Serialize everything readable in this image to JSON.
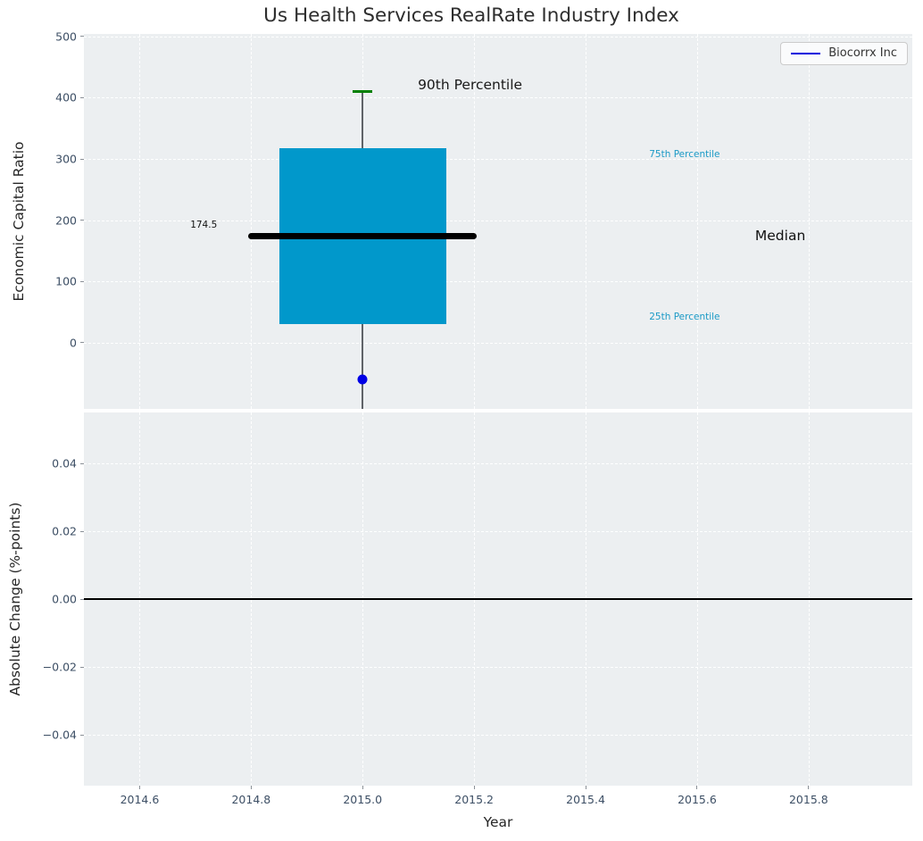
{
  "figure": {
    "title": "Us Health Services RealRate Industry Index",
    "background": "#ffffff",
    "axes_background": "#eceff1",
    "grid_color": "#ffffff",
    "tick_label_color": "#3d4f65",
    "axis_label_color": "#262626"
  },
  "legend": {
    "label": "Biocorrx Inc",
    "line_color": "#0000dd",
    "position": "upper right"
  },
  "chart_data": [
    {
      "type": "boxplot",
      "title": "Us Health Services RealRate Industry Index",
      "ylabel": "Economic Capital Ratio",
      "xlim": [
        2014.5,
        2015.986
      ],
      "ylim": [
        -108,
        504
      ],
      "ytick_values": [
        0,
        100,
        200,
        300,
        400,
        500
      ],
      "ytick_labels": [
        "0",
        "100",
        "200",
        "300",
        "400",
        "500"
      ],
      "xgrid_values": [
        2014.6,
        2014.8,
        2015.0,
        2015.2,
        2015.4,
        2015.6,
        2015.8
      ],
      "grid": true,
      "box": {
        "x": 2015.0,
        "p90": 410,
        "p75": 317,
        "median": 174.5,
        "p25": 31,
        "whisker_low_clipped": true,
        "box_color": "#0198cb",
        "median_color": "#000000",
        "cap_color": "#008000",
        "whisker_color": "#5f6368",
        "box_halfwidth_years": 0.15,
        "median_halfwidth_years": 0.205,
        "cap_halfwidth_years": 0.018
      },
      "company_point": {
        "name": "Biocorrx Inc",
        "x": 2015.0,
        "y": -60,
        "color": "#0000e6"
      },
      "annotations": [
        {
          "text": "90th Percentile",
          "x": 2015.099,
          "y": 421,
          "color": "#1a1a1a",
          "size": 15.5,
          "align": "left"
        },
        {
          "text": "75th Percentile",
          "x": 2015.514,
          "y": 307,
          "color": "#1b9ac6",
          "size": 10.5,
          "align": "left"
        },
        {
          "text": "Median",
          "x": 2015.704,
          "y": 175,
          "color": "#111111",
          "size": 15.5,
          "align": "left"
        },
        {
          "text": "25th Percentile",
          "x": 2015.514,
          "y": 42,
          "color": "#1b9ac6",
          "size": 10.5,
          "align": "left"
        },
        {
          "text": "174.5",
          "x": 2014.739,
          "y": 192,
          "color": "#111111",
          "size": 10.5,
          "align": "right"
        }
      ]
    },
    {
      "type": "line",
      "ylabel": "Absolute Change (%-points)",
      "xlabel": "Year",
      "xlim": [
        2014.5,
        2015.986
      ],
      "ylim": [
        -0.055,
        0.055
      ],
      "ytick_values": [
        0.04,
        0.02,
        0.0,
        -0.02,
        -0.04
      ],
      "ytick_labels": [
        "0.04",
        "0.02",
        "0.00",
        "−0.02",
        "−0.04"
      ],
      "xtick_values": [
        2014.6,
        2014.8,
        2015.0,
        2015.2,
        2015.4,
        2015.6,
        2015.8
      ],
      "xtick_labels": [
        "2014.6",
        "2014.8",
        "2015.0",
        "2015.2",
        "2015.4",
        "2015.6",
        "2015.8"
      ],
      "xgrid_values": [
        2014.6,
        2014.8,
        2015.0,
        2015.2,
        2015.4,
        2015.6,
        2015.8
      ],
      "grid": true,
      "zero_line": {
        "y": 0.0,
        "color": "#000000"
      },
      "series": []
    }
  ]
}
